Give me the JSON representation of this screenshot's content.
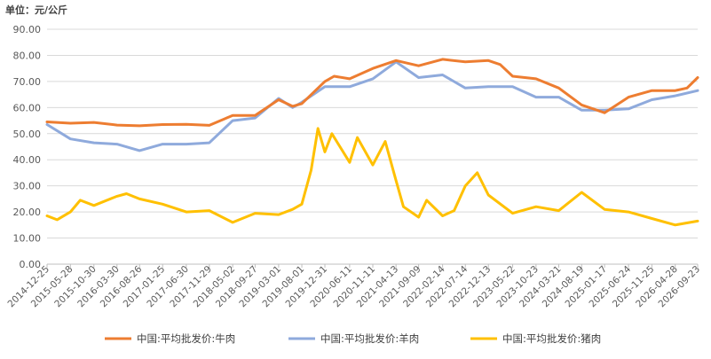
{
  "chart_data": {
    "type": "line",
    "unit_label": "单位：元/公斤",
    "ylim": [
      0,
      90
    ],
    "yticks": [
      "0.00",
      "10.00",
      "20.00",
      "30.00",
      "40.00",
      "50.00",
      "60.00",
      "70.00",
      "80.00",
      "90.00"
    ],
    "grid": true,
    "legend_position": "bottom",
    "x_start": "2014-12-25",
    "x_end": "2026-09-23",
    "xticks": [
      "2014-12-25",
      "2015-05-28",
      "2015-10-30",
      "2016-03-30",
      "2016-08-26",
      "2017-01-25",
      "2017-06-30",
      "2017-11-29",
      "2018-05-02",
      "2018-09-27",
      "2019-03-01",
      "2019-08-01",
      "2019-12-31",
      "2020-06-11",
      "2020-11-11",
      "2021-04-13",
      "2021-09-09",
      "2022-02-14",
      "2022-07-14",
      "2022-12-13",
      "2023-05-22",
      "2023-10-23",
      "2024-03-21",
      "2024-08-19",
      "2025-01-17",
      "2025-06-24",
      "2025-11-25",
      "2026-04-28",
      "2026-09-23"
    ],
    "series": [
      {
        "name": "中国:平均批发价:牛肉",
        "color": "#ED7D31",
        "points": [
          [
            "2014-12-25",
            54.5
          ],
          [
            "2015-05-28",
            54.0
          ],
          [
            "2015-10-30",
            54.3
          ],
          [
            "2016-03-30",
            53.3
          ],
          [
            "2016-08-26",
            53.0
          ],
          [
            "2017-01-25",
            53.5
          ],
          [
            "2017-06-30",
            53.6
          ],
          [
            "2017-11-29",
            53.2
          ],
          [
            "2018-05-02",
            57.0
          ],
          [
            "2018-09-27",
            57.0
          ],
          [
            "2019-03-01",
            63.0
          ],
          [
            "2019-06-01",
            60.5
          ],
          [
            "2019-08-01",
            61.5
          ],
          [
            "2019-12-31",
            70.0
          ],
          [
            "2020-03-01",
            72.0
          ],
          [
            "2020-06-11",
            71.0
          ],
          [
            "2020-11-11",
            75.0
          ],
          [
            "2021-04-13",
            78.0
          ],
          [
            "2021-09-09",
            76.0
          ],
          [
            "2022-02-14",
            78.5
          ],
          [
            "2022-07-14",
            77.5
          ],
          [
            "2022-12-13",
            78.0
          ],
          [
            "2023-03-01",
            76.5
          ],
          [
            "2023-05-22",
            72.0
          ],
          [
            "2023-10-23",
            71.0
          ],
          [
            "2024-03-21",
            67.5
          ],
          [
            "2024-08-19",
            61.0
          ],
          [
            "2025-01-17",
            58.0
          ],
          [
            "2025-06-24",
            64.0
          ],
          [
            "2025-11-25",
            66.5
          ],
          [
            "2026-04-28",
            66.5
          ],
          [
            "2026-07-15",
            67.5
          ],
          [
            "2026-09-23",
            71.5
          ]
        ]
      },
      {
        "name": "中国:平均批发价:羊肉",
        "color": "#8FAADC",
        "points": [
          [
            "2014-12-25",
            53.5
          ],
          [
            "2015-05-28",
            48.0
          ],
          [
            "2015-10-30",
            46.5
          ],
          [
            "2016-03-30",
            46.0
          ],
          [
            "2016-08-26",
            43.5
          ],
          [
            "2017-01-25",
            46.0
          ],
          [
            "2017-06-30",
            46.0
          ],
          [
            "2017-11-29",
            46.5
          ],
          [
            "2018-05-02",
            55.0
          ],
          [
            "2018-09-27",
            56.0
          ],
          [
            "2019-03-01",
            63.5
          ],
          [
            "2019-06-01",
            60.0
          ],
          [
            "2019-08-01",
            62.0
          ],
          [
            "2019-12-31",
            68.0
          ],
          [
            "2020-06-11",
            68.0
          ],
          [
            "2020-11-11",
            71.0
          ],
          [
            "2021-04-13",
            77.5
          ],
          [
            "2021-09-09",
            71.5
          ],
          [
            "2022-02-14",
            72.5
          ],
          [
            "2022-07-14",
            67.5
          ],
          [
            "2022-12-13",
            68.0
          ],
          [
            "2023-05-22",
            68.0
          ],
          [
            "2023-10-23",
            64.0
          ],
          [
            "2024-03-21",
            64.0
          ],
          [
            "2024-08-19",
            59.0
          ],
          [
            "2025-01-17",
            59.0
          ],
          [
            "2025-06-24",
            59.5
          ],
          [
            "2025-11-25",
            63.0
          ],
          [
            "2026-04-28",
            64.5
          ],
          [
            "2026-09-23",
            66.5
          ]
        ]
      },
      {
        "name": "中国:平均批发价:猪肉",
        "color": "#FFC000",
        "points": [
          [
            "2014-12-25",
            18.5
          ],
          [
            "2015-03-01",
            17.0
          ],
          [
            "2015-05-28",
            20.0
          ],
          [
            "2015-08-01",
            24.5
          ],
          [
            "2015-10-30",
            22.5
          ],
          [
            "2016-03-30",
            26.0
          ],
          [
            "2016-06-01",
            27.0
          ],
          [
            "2016-08-26",
            25.0
          ],
          [
            "2017-01-25",
            23.0
          ],
          [
            "2017-06-30",
            20.0
          ],
          [
            "2017-11-29",
            20.5
          ],
          [
            "2018-05-02",
            16.0
          ],
          [
            "2018-09-27",
            19.5
          ],
          [
            "2019-03-01",
            19.0
          ],
          [
            "2019-06-01",
            21.0
          ],
          [
            "2019-08-01",
            23.0
          ],
          [
            "2019-10-01",
            36.0
          ],
          [
            "2019-11-15",
            52.0
          ],
          [
            "2019-12-31",
            43.0
          ],
          [
            "2020-02-15",
            50.0
          ],
          [
            "2020-06-11",
            39.0
          ],
          [
            "2020-08-01",
            48.5
          ],
          [
            "2020-11-11",
            38.0
          ],
          [
            "2021-02-01",
            47.0
          ],
          [
            "2021-04-13",
            32.0
          ],
          [
            "2021-06-01",
            22.0
          ],
          [
            "2021-09-09",
            18.0
          ],
          [
            "2021-11-01",
            24.5
          ],
          [
            "2022-02-14",
            18.5
          ],
          [
            "2022-05-01",
            20.5
          ],
          [
            "2022-07-14",
            30.0
          ],
          [
            "2022-10-01",
            35.0
          ],
          [
            "2022-12-13",
            26.5
          ],
          [
            "2023-05-22",
            19.5
          ],
          [
            "2023-10-23",
            22.0
          ],
          [
            "2024-03-21",
            20.5
          ],
          [
            "2024-08-19",
            27.5
          ],
          [
            "2025-01-17",
            21.0
          ],
          [
            "2025-06-24",
            20.0
          ],
          [
            "2025-11-25",
            17.5
          ],
          [
            "2026-04-28",
            15.0
          ],
          [
            "2026-09-23",
            16.5
          ]
        ]
      }
    ]
  }
}
